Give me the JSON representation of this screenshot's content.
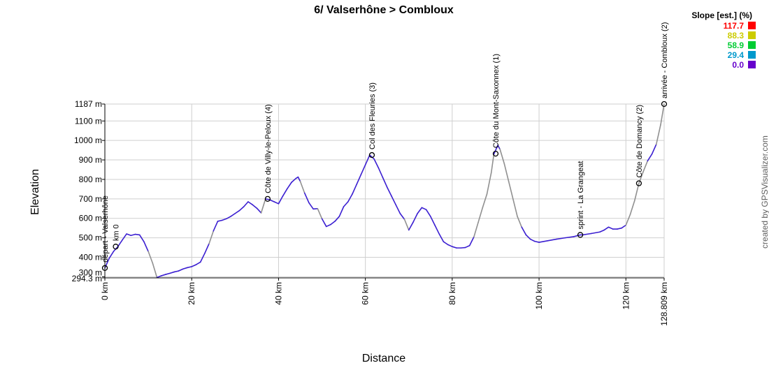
{
  "chart_data": {
    "type": "line",
    "title": "6/ Valserhône > Combloux",
    "xlabel": "Distance",
    "ylabel": "Elevation",
    "xlim": [
      0,
      128.809
    ],
    "ylim": [
      294.3,
      1187
    ],
    "x_ticks": [
      0,
      20,
      40,
      60,
      80,
      100,
      120,
      128.809
    ],
    "x_tick_labels": [
      "0 km",
      "20 km",
      "40 km",
      "60 km",
      "80 km",
      "100 km",
      "120 km",
      "128.809 km"
    ],
    "y_ticks": [
      294.3,
      300,
      400,
      500,
      600,
      700,
      800,
      900,
      1000,
      1100,
      1187
    ],
    "y_tick_labels": [
      "294.3 m",
      "300 m",
      "400 m",
      "500 m",
      "600 m",
      "700 m",
      "800 m",
      "900 m",
      "1000 m",
      "1100 m",
      "1187 m"
    ],
    "grid": true,
    "series": [
      {
        "points": [
          [
            0,
            345
          ],
          [
            1,
            395
          ],
          [
            2,
            430
          ],
          [
            3,
            455
          ],
          [
            4,
            488
          ],
          [
            5,
            520
          ],
          [
            6,
            512
          ],
          [
            7,
            518
          ],
          [
            8,
            515
          ],
          [
            9,
            480
          ],
          [
            10,
            430
          ],
          [
            11,
            370
          ],
          [
            12,
            296
          ],
          [
            13,
            305
          ],
          [
            14,
            312
          ],
          [
            15,
            318
          ],
          [
            16,
            325
          ],
          [
            17,
            330
          ],
          [
            18,
            340
          ],
          [
            19,
            347
          ],
          [
            20,
            352
          ],
          [
            21,
            362
          ],
          [
            22,
            375
          ],
          [
            23,
            420
          ],
          [
            24,
            470
          ],
          [
            25,
            535
          ],
          [
            26,
            585
          ],
          [
            27,
            590
          ],
          [
            28,
            598
          ],
          [
            29,
            610
          ],
          [
            30,
            625
          ],
          [
            31,
            640
          ],
          [
            32,
            660
          ],
          [
            33,
            685
          ],
          [
            34,
            670
          ],
          [
            35,
            652
          ],
          [
            36,
            628
          ],
          [
            37,
            700
          ],
          [
            38,
            695
          ],
          [
            39,
            685
          ],
          [
            40,
            675
          ],
          [
            41,
            715
          ],
          [
            42,
            752
          ],
          [
            43,
            785
          ],
          [
            44,
            805
          ],
          [
            44.5,
            812
          ],
          [
            45,
            790
          ],
          [
            46,
            730
          ],
          [
            47,
            680
          ],
          [
            48,
            648
          ],
          [
            49,
            650
          ],
          [
            50,
            598
          ],
          [
            51,
            558
          ],
          [
            52,
            568
          ],
          [
            53,
            585
          ],
          [
            54,
            610
          ],
          [
            55,
            660
          ],
          [
            56,
            685
          ],
          [
            57,
            725
          ],
          [
            58,
            775
          ],
          [
            59,
            825
          ],
          [
            60,
            875
          ],
          [
            61,
            925
          ],
          [
            62,
            905
          ],
          [
            63,
            860
          ],
          [
            64,
            810
          ],
          [
            65,
            760
          ],
          [
            66,
            715
          ],
          [
            67,
            670
          ],
          [
            68,
            625
          ],
          [
            69,
            595
          ],
          [
            70,
            540
          ],
          [
            71,
            580
          ],
          [
            72,
            625
          ],
          [
            73,
            655
          ],
          [
            74,
            645
          ],
          [
            75,
            610
          ],
          [
            76,
            565
          ],
          [
            77,
            520
          ],
          [
            78,
            480
          ],
          [
            79,
            465
          ],
          [
            80,
            455
          ],
          [
            81,
            448
          ],
          [
            82,
            448
          ],
          [
            83,
            450
          ],
          [
            84,
            460
          ],
          [
            85,
            505
          ],
          [
            86,
            580
          ],
          [
            87,
            655
          ],
          [
            88,
            725
          ],
          [
            89,
            835
          ],
          [
            89.6,
            930
          ],
          [
            90.5,
            975
          ],
          [
            91,
            955
          ],
          [
            92,
            880
          ],
          [
            93,
            790
          ],
          [
            94,
            700
          ],
          [
            95,
            610
          ],
          [
            96,
            555
          ],
          [
            97,
            515
          ],
          [
            98,
            493
          ],
          [
            99,
            482
          ],
          [
            100,
            477
          ],
          [
            102,
            485
          ],
          [
            104,
            493
          ],
          [
            106,
            500
          ],
          [
            108,
            506
          ],
          [
            109.5,
            515
          ],
          [
            110,
            515
          ],
          [
            112,
            522
          ],
          [
            114,
            530
          ],
          [
            115,
            540
          ],
          [
            116,
            555
          ],
          [
            117,
            545
          ],
          [
            118,
            545
          ],
          [
            119,
            550
          ],
          [
            120,
            565
          ],
          [
            121,
            620
          ],
          [
            122,
            690
          ],
          [
            123,
            780
          ],
          [
            124,
            840
          ],
          [
            125,
            895
          ],
          [
            126,
            930
          ],
          [
            127,
            980
          ],
          [
            128,
            1080
          ],
          [
            128.809,
            1187
          ]
        ]
      }
    ],
    "markers": [
      {
        "x": 0,
        "y": 345,
        "label": "départ - Valserhône"
      },
      {
        "x": 2.5,
        "y": 455,
        "label": "km 0"
      },
      {
        "x": 37.5,
        "y": 700,
        "label": "Côte de Villy-le-Peloux (4)"
      },
      {
        "x": 61.5,
        "y": 925,
        "label": "Col des Fleuries (3)"
      },
      {
        "x": 90,
        "y": 932,
        "label": "Côte du Mont-Saxonnex (1)"
      },
      {
        "x": 109.5,
        "y": 515,
        "label": "sprint - La Grangeat"
      },
      {
        "x": 123,
        "y": 780,
        "label": "Côte de Domancy (2)"
      },
      {
        "x": 128.809,
        "y": 1187,
        "label": "arrivée - Combloux (2)"
      }
    ],
    "legend": {
      "title": "Slope [est.] (%)",
      "position": "top-right",
      "items": [
        {
          "value": "117.7",
          "color": "#ff0000"
        },
        {
          "value": "88.3",
          "color": "#cccc00"
        },
        {
          "value": "58.9",
          "color": "#00cc33"
        },
        {
          "value": "29.4",
          "color": "#0099cc"
        },
        {
          "value": "0.0",
          "color": "#6600cc"
        }
      ]
    },
    "line_color": "#3b1fd1",
    "steep_color": "#909090"
  },
  "credit": "created by GPSVisualizer.com"
}
